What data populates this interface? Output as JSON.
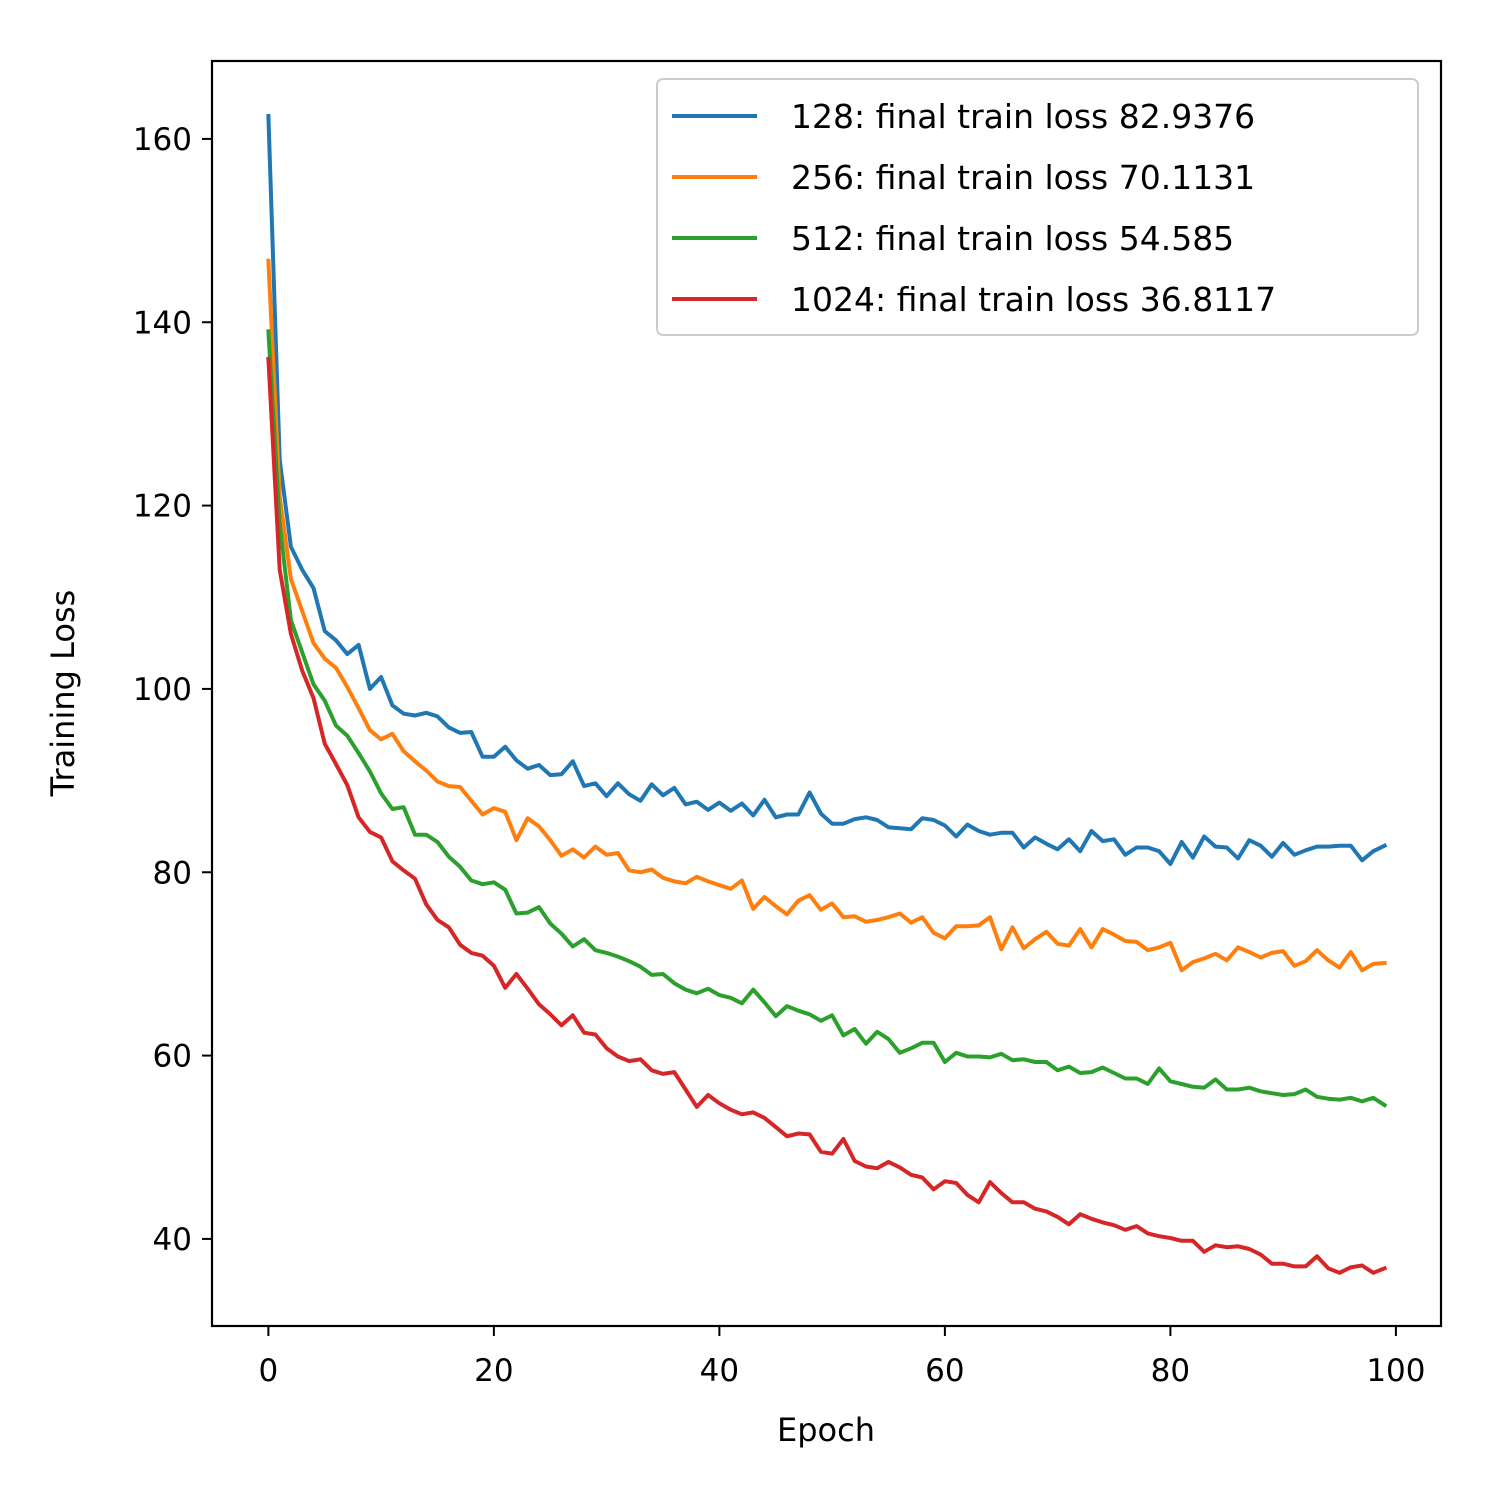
{
  "chart_data": {
    "type": "line",
    "title": "",
    "xlabel": "Epoch",
    "ylabel": "Training Loss",
    "xlim": [
      -5,
      104
    ],
    "ylim": [
      30.5,
      168.5
    ],
    "xticks": [
      0,
      20,
      40,
      60,
      80,
      100
    ],
    "yticks": [
      40,
      60,
      80,
      100,
      120,
      140,
      160
    ],
    "xtick_labels": [
      "0",
      "20",
      "40",
      "60",
      "80",
      "100"
    ],
    "ytick_labels": [
      "40",
      "60",
      "80",
      "100",
      "120",
      "140",
      "160"
    ],
    "grid": false,
    "legend_position": "top-right",
    "x": [
      0,
      1,
      2,
      3,
      4,
      5,
      6,
      7,
      8,
      9,
      10,
      11,
      12,
      13,
      14,
      15,
      16,
      17,
      18,
      19,
      20,
      21,
      22,
      23,
      24,
      25,
      26,
      27,
      28,
      29,
      30,
      31,
      32,
      33,
      34,
      35,
      36,
      37,
      38,
      39,
      40,
      41,
      42,
      43,
      44,
      45,
      46,
      47,
      48,
      49,
      50,
      51,
      52,
      53,
      54,
      55,
      56,
      57,
      58,
      59,
      60,
      61,
      62,
      63,
      64,
      65,
      66,
      67,
      68,
      69,
      70,
      71,
      72,
      73,
      74,
      75,
      76,
      77,
      78,
      79,
      80,
      81,
      82,
      83,
      84,
      85,
      86,
      87,
      88,
      89,
      90,
      91,
      92,
      93,
      94,
      95,
      96,
      97,
      98,
      99
    ],
    "series": [
      {
        "name": "128: final train loss 82.9376",
        "color": "#1f77b4",
        "values": [
          162.5,
          125.0,
          115.5,
          113.0,
          111.0,
          106.3,
          105.3,
          103.8,
          104.8,
          100.0,
          101.3,
          98.2,
          97.3,
          97.1,
          97.4,
          97.0,
          95.8,
          95.2,
          95.3,
          92.6,
          92.6,
          93.7,
          92.2,
          91.3,
          91.7,
          90.6,
          90.7,
          92.1,
          89.4,
          89.7,
          88.3,
          89.7,
          88.5,
          87.8,
          89.6,
          88.4,
          89.2,
          87.4,
          87.7,
          86.8,
          87.6,
          86.7,
          87.5,
          86.2,
          87.9,
          86.0,
          86.3,
          86.3,
          88.7,
          86.4,
          85.3,
          85.3,
          85.8,
          86.0,
          85.7,
          84.9,
          84.8,
          84.7,
          85.9,
          85.7,
          85.1,
          83.9,
          85.2,
          84.5,
          84.1,
          84.3,
          84.3,
          82.7,
          83.8,
          83.1,
          82.5,
          83.6,
          82.3,
          84.5,
          83.4,
          83.6,
          81.9,
          82.7,
          82.7,
          82.3,
          80.9,
          83.3,
          81.6,
          83.9,
          82.8,
          82.7,
          81.5,
          83.5,
          82.9,
          81.7,
          83.2,
          81.9,
          82.4,
          82.8,
          82.8,
          82.9,
          82.9,
          81.3,
          82.3,
          82.9
        ]
      },
      {
        "name": "256: final train loss 70.1131",
        "color": "#ff7f0e",
        "values": [
          146.7,
          121.0,
          112.0,
          108.5,
          105.0,
          103.3,
          102.3,
          100.2,
          97.9,
          95.5,
          94.5,
          95.1,
          93.2,
          92.1,
          91.1,
          89.9,
          89.4,
          89.3,
          87.8,
          86.3,
          87.0,
          86.6,
          83.5,
          85.9,
          85.0,
          83.5,
          81.8,
          82.5,
          81.6,
          82.8,
          81.9,
          82.1,
          80.2,
          80.0,
          80.3,
          79.4,
          79.0,
          78.8,
          79.5,
          79.0,
          78.6,
          78.2,
          79.1,
          76.0,
          77.3,
          76.3,
          75.4,
          76.9,
          77.5,
          75.9,
          76.6,
          75.1,
          75.2,
          74.6,
          74.8,
          75.1,
          75.5,
          74.5,
          75.1,
          73.4,
          72.8,
          74.1,
          74.1,
          74.2,
          75.1,
          71.6,
          74.0,
          71.7,
          72.7,
          73.5,
          72.2,
          72.0,
          73.8,
          71.8,
          73.8,
          73.2,
          72.5,
          72.4,
          71.5,
          71.8,
          72.3,
          69.3,
          70.2,
          70.6,
          71.1,
          70.4,
          71.8,
          71.3,
          70.7,
          71.2,
          71.4,
          69.8,
          70.3,
          71.5,
          70.4,
          69.6,
          71.3,
          69.3,
          70.0,
          70.1
        ]
      },
      {
        "name": "512: final train loss 54.585",
        "color": "#2ca02c",
        "values": [
          139.0,
          118.0,
          107.5,
          104.0,
          100.5,
          98.7,
          96.0,
          94.9,
          93.0,
          91.0,
          88.6,
          86.9,
          87.1,
          84.1,
          84.1,
          83.3,
          81.7,
          80.6,
          79.1,
          78.7,
          78.9,
          78.1,
          75.5,
          75.6,
          76.2,
          74.4,
          73.3,
          71.9,
          72.7,
          71.5,
          71.2,
          70.8,
          70.3,
          69.7,
          68.8,
          68.9,
          67.9,
          67.2,
          66.8,
          67.3,
          66.6,
          66.3,
          65.7,
          67.2,
          65.8,
          64.3,
          65.4,
          64.9,
          64.5,
          63.8,
          64.4,
          62.2,
          62.9,
          61.3,
          62.6,
          61.8,
          60.3,
          60.8,
          61.4,
          61.4,
          59.3,
          60.3,
          59.9,
          59.9,
          59.8,
          60.2,
          59.5,
          59.6,
          59.3,
          59.3,
          58.4,
          58.8,
          58.1,
          58.2,
          58.7,
          58.1,
          57.5,
          57.5,
          56.9,
          58.6,
          57.2,
          56.9,
          56.6,
          56.5,
          57.4,
          56.3,
          56.3,
          56.5,
          56.1,
          55.9,
          55.7,
          55.8,
          56.3,
          55.5,
          55.3,
          55.2,
          55.4,
          55.0,
          55.4,
          54.6
        ]
      },
      {
        "name": "1024: final train loss 36.8117",
        "color": "#d62728",
        "values": [
          136.0,
          113.0,
          106.0,
          102.0,
          99.0,
          94.0,
          91.8,
          89.5,
          86.0,
          84.4,
          83.8,
          81.2,
          80.2,
          79.3,
          76.5,
          74.8,
          74.0,
          72.1,
          71.2,
          70.9,
          69.8,
          67.4,
          68.9,
          67.3,
          65.6,
          64.5,
          63.3,
          64.4,
          62.5,
          62.3,
          60.8,
          59.9,
          59.4,
          59.6,
          58.4,
          58.0,
          58.2,
          56.3,
          54.4,
          55.7,
          54.8,
          54.1,
          53.6,
          53.8,
          53.2,
          52.2,
          51.2,
          51.5,
          51.4,
          49.5,
          49.3,
          50.9,
          48.5,
          47.9,
          47.7,
          48.4,
          47.8,
          47.0,
          46.7,
          45.4,
          46.3,
          46.1,
          44.8,
          44.0,
          46.2,
          45.0,
          44.0,
          44.0,
          43.3,
          43.0,
          42.4,
          41.6,
          42.7,
          42.2,
          41.8,
          41.5,
          41.0,
          41.4,
          40.6,
          40.3,
          40.1,
          39.8,
          39.8,
          38.6,
          39.3,
          39.1,
          39.2,
          38.9,
          38.3,
          37.3,
          37.3,
          37.0,
          37.0,
          38.1,
          36.8,
          36.3,
          36.9,
          37.1,
          36.3,
          36.8
        ]
      }
    ]
  }
}
